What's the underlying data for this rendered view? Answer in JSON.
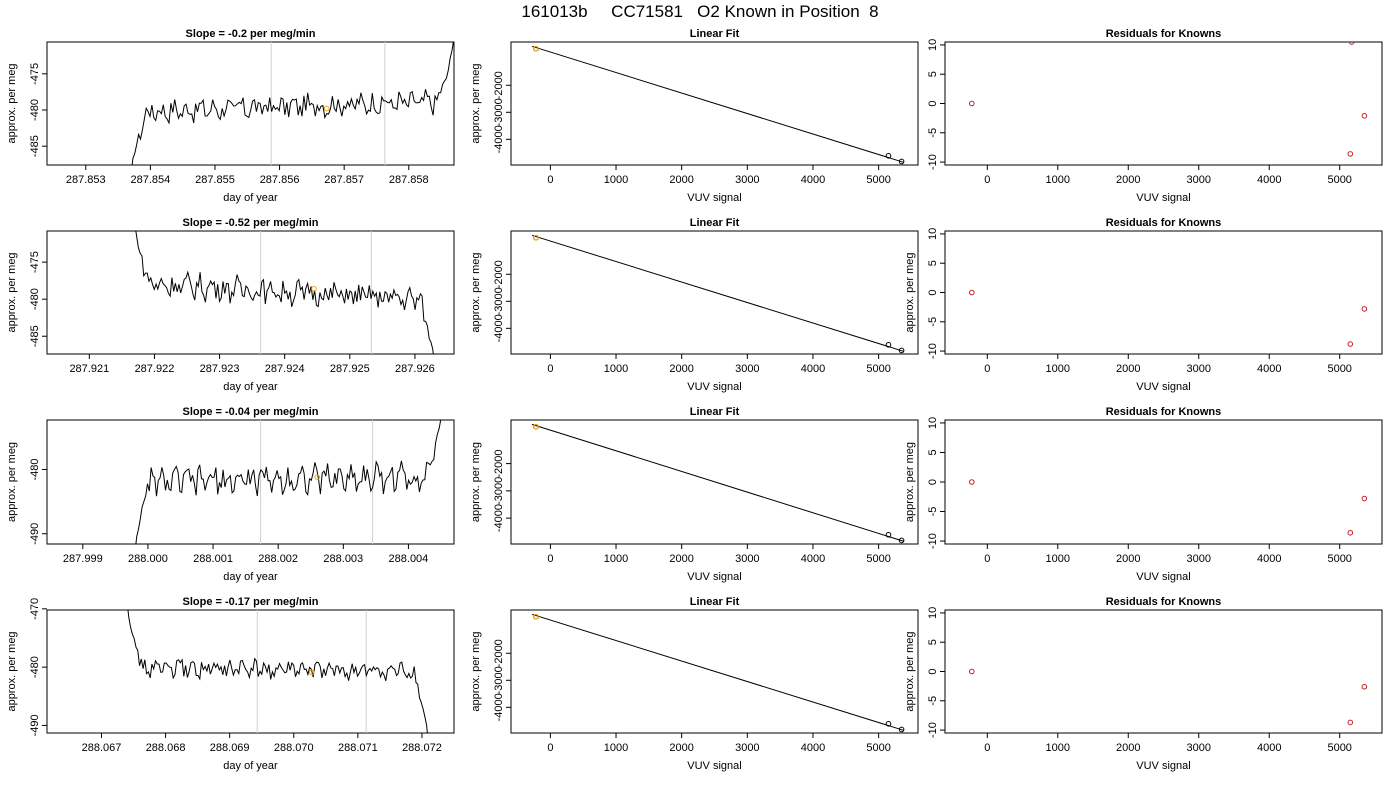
{
  "figure_title": "161013b     CC71581   O2 Known in Position  8",
  "colors": {
    "trace": "#000000",
    "marker_orange": "#f5a31a",
    "marker_red": "#cc2222",
    "vline": "#cfcfcf"
  },
  "chart_data": [
    {
      "type": "line",
      "title": "Slope =  -0.2  per meg/min",
      "xlabel": "day of year",
      "ylabel": "approx. per meg",
      "x_ticks": [
        "287.853",
        "287.854",
        "287.855",
        "287.856",
        "287.857",
        "287.858"
      ],
      "y_ticks": [
        "-475",
        "-480",
        "-485"
      ],
      "xlim": [
        287.8524,
        287.8587
      ],
      "ylim": [
        -487.6,
        -470.6
      ],
      "vlines": [
        287.85587,
        287.85763
      ],
      "marker": [
        287.85673,
        -479.8
      ],
      "series": [
        {
          "x_start": 287.8537,
          "x_end": 287.8587,
          "baseline": -479.5,
          "amplitude": 1.3,
          "trend": 1.5,
          "start_y": -489,
          "end_y": -470
        }
      ]
    },
    {
      "type": "scatter",
      "title": "Linear Fit",
      "xlabel": "VUV signal",
      "ylabel": "approx. per meg",
      "x_ticks": [
        "0",
        "1000",
        "2000",
        "3000",
        "4000",
        "5000"
      ],
      "y_ticks": [
        "-2000",
        "-3000",
        "-4000"
      ],
      "xlim": [
        -600,
        5600
      ],
      "ylim": [
        -4950,
        -400
      ],
      "fit_line": [
        [
          -280,
          -560
        ],
        [
          5380,
          -4850
        ]
      ],
      "points": [
        [
          -220,
          -650
        ],
        [
          5150,
          -4610
        ],
        [
          5350,
          -4820
        ]
      ],
      "highlight": [
        -220,
        -650
      ]
    },
    {
      "type": "scatter",
      "title": "Residuals for Knowns",
      "xlabel": "VUV signal",
      "ylabel": "",
      "x_ticks": [
        "0",
        "1000",
        "2000",
        "3000",
        "4000",
        "5000"
      ],
      "y_ticks": [
        "10",
        "5",
        "0",
        "-5",
        "-10"
      ],
      "xlim": [
        -600,
        5600
      ],
      "ylim": [
        -10.5,
        10.5
      ],
      "points": [
        [
          -220,
          0.0
        ],
        [
          5170,
          10.5
        ],
        [
          5350,
          -2.1
        ],
        [
          5150,
          -8.6
        ]
      ]
    },
    {
      "type": "line",
      "title": "Slope =  -0.52  per meg/min",
      "xlabel": "day of year",
      "ylabel": "approx. per meg",
      "x_ticks": [
        "287.921",
        "287.922",
        "287.923",
        "287.924",
        "287.925",
        "287.926"
      ],
      "y_ticks": [
        "-475",
        "-480",
        "-485"
      ],
      "xlim": [
        287.92035,
        287.9266
      ],
      "ylim": [
        -487.4,
        -470.8
      ],
      "vlines": [
        287.92363,
        287.92533
      ],
      "marker": [
        287.92445,
        -478.6
      ],
      "series": [
        {
          "x_start": 287.9217,
          "x_end": 287.9263,
          "baseline": -479.0,
          "amplitude": 1.4,
          "trend": -2.3,
          "start_y": -470,
          "end_y": -489
        }
      ]
    },
    {
      "type": "scatter",
      "title": "Linear Fit",
      "xlabel": "VUV signal",
      "ylabel": "approx. per meg",
      "x_ticks": [
        "0",
        "1000",
        "2000",
        "3000",
        "4000",
        "5000"
      ],
      "y_ticks": [
        "-2000",
        "-3000",
        "-4000"
      ],
      "xlim": [
        -600,
        5600
      ],
      "ylim": [
        -4950,
        -400
      ],
      "fit_line": [
        [
          -280,
          -560
        ],
        [
          5380,
          -4850
        ]
      ],
      "points": [
        [
          -220,
          -650
        ],
        [
          5150,
          -4610
        ],
        [
          5350,
          -4820
        ]
      ],
      "highlight": [
        -220,
        -650
      ]
    },
    {
      "type": "scatter",
      "title": "Residuals for Knowns",
      "xlabel": "VUV signal",
      "ylabel": "approx. per meg",
      "x_ticks": [
        "0",
        "1000",
        "2000",
        "3000",
        "4000",
        "5000"
      ],
      "y_ticks": [
        "10",
        "5",
        "0",
        "-5",
        "-10"
      ],
      "xlim": [
        -600,
        5600
      ],
      "ylim": [
        -10.5,
        10.5
      ],
      "points": [
        [
          -220,
          0.0
        ],
        [
          5350,
          -2.8
        ],
        [
          5150,
          -8.8
        ]
      ]
    },
    {
      "type": "line",
      "title": "Slope =  -0.04  per meg/min",
      "xlabel": "day of year",
      "ylabel": "approx. per meg",
      "x_ticks": [
        "287.999",
        "288.000",
        "288.001",
        "288.002",
        "288.003",
        "288.004"
      ],
      "y_ticks": [
        "-480",
        "-490"
      ],
      "xlim": [
        287.99845,
        288.0047
      ],
      "ylim": [
        -491.6,
        -472.3
      ],
      "vlines": [
        288.00173,
        288.00345
      ],
      "marker": [
        288.0026,
        -481.2
      ],
      "series": [
        {
          "x_start": 287.9998,
          "x_end": 288.0045,
          "baseline": -481.5,
          "amplitude": 1.8,
          "trend": 1.0,
          "start_y": -493,
          "end_y": -472
        }
      ]
    },
    {
      "type": "scatter",
      "title": "Linear Fit",
      "xlabel": "VUV signal",
      "ylabel": "approx. per meg",
      "x_ticks": [
        "0",
        "1000",
        "2000",
        "3000",
        "4000",
        "5000"
      ],
      "y_ticks": [
        "-2000",
        "-3000",
        "-4000"
      ],
      "xlim": [
        -600,
        5600
      ],
      "ylim": [
        -4950,
        -400
      ],
      "fit_line": [
        [
          -280,
          -560
        ],
        [
          5380,
          -4850
        ]
      ],
      "points": [
        [
          -220,
          -650
        ],
        [
          5150,
          -4610
        ],
        [
          5350,
          -4820
        ]
      ],
      "highlight": [
        -220,
        -650
      ]
    },
    {
      "type": "scatter",
      "title": "Residuals for Knowns",
      "xlabel": "VUV signal",
      "ylabel": "approx. per meg",
      "x_ticks": [
        "0",
        "1000",
        "2000",
        "3000",
        "4000",
        "5000"
      ],
      "y_ticks": [
        "10",
        "5",
        "0",
        "-5",
        "-10"
      ],
      "xlim": [
        -600,
        5600
      ],
      "ylim": [
        -10.5,
        10.5
      ],
      "points": [
        [
          -220,
          0.0
        ],
        [
          5350,
          -2.8
        ],
        [
          5150,
          -8.6
        ]
      ]
    },
    {
      "type": "line",
      "title": "Slope =  -0.17  per meg/min",
      "xlabel": "day of year",
      "ylabel": "approx. per meg",
      "x_ticks": [
        "288.067",
        "288.068",
        "288.069",
        "288.070",
        "288.071",
        "288.072"
      ],
      "y_ticks": [
        "-470",
        "-480",
        "-490"
      ],
      "xlim": [
        288.06615,
        288.0725
      ],
      "ylim": [
        -491.3,
        -470.2
      ],
      "vlines": [
        288.06943,
        288.07113
      ],
      "marker": [
        288.07028,
        -480.9
      ],
      "series": [
        {
          "x_start": 288.0674,
          "x_end": 288.0721,
          "baseline": -480.5,
          "amplitude": 1.3,
          "trend": -0.8,
          "start_y": -469,
          "end_y": -493
        }
      ]
    },
    {
      "type": "scatter",
      "title": "Linear Fit",
      "xlabel": "VUV signal",
      "ylabel": "approx. per meg",
      "x_ticks": [
        "0",
        "1000",
        "2000",
        "3000",
        "4000",
        "5000"
      ],
      "y_ticks": [
        "-2000",
        "-3000",
        "-4000"
      ],
      "xlim": [
        -600,
        5600
      ],
      "ylim": [
        -4950,
        -400
      ],
      "fit_line": [
        [
          -280,
          -560
        ],
        [
          5380,
          -4850
        ]
      ],
      "points": [
        [
          -220,
          -650
        ],
        [
          5150,
          -4610
        ],
        [
          5350,
          -4820
        ]
      ],
      "highlight": [
        -220,
        -650
      ]
    },
    {
      "type": "scatter",
      "title": "Residuals for Knowns",
      "xlabel": "VUV signal",
      "ylabel": "approx. per meg",
      "x_ticks": [
        "0",
        "1000",
        "2000",
        "3000",
        "4000",
        "5000"
      ],
      "y_ticks": [
        "10",
        "5",
        "0",
        "-5",
        "-10"
      ],
      "xlim": [
        -600,
        5600
      ],
      "ylim": [
        -10.5,
        10.5
      ],
      "points": [
        [
          -220,
          0.0
        ],
        [
          5350,
          -2.6
        ],
        [
          5150,
          -8.7
        ]
      ]
    }
  ]
}
